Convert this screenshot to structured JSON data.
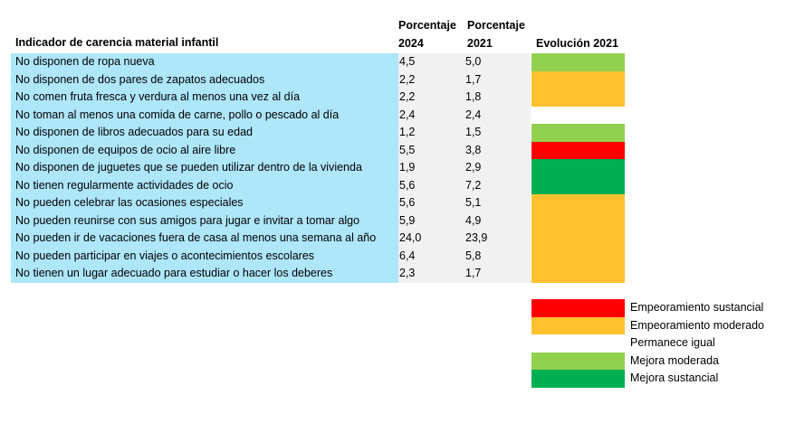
{
  "header": {
    "indicator_label": "Indicador de carencia material infantil",
    "pct_2024_line1": "Porcentaje",
    "pct_2024_line2": "2024",
    "pct_2021_line1": "Porcentaje",
    "pct_2021_line2": "2021",
    "evolution_label": "Evolución 2021"
  },
  "colors": {
    "indicator_bg": "#aee6fa",
    "value_bg": "#f1f1f1",
    "empeoramiento_sustancial": "#fe0000",
    "empeoramiento_moderado": "#fec12f",
    "permanece_igual": "#ffffff",
    "mejora_moderada": "#92d050",
    "mejora_sustancial": "#00b050"
  },
  "rows": [
    {
      "indicator": "No disponen de ropa nueva",
      "v2024": "4,5",
      "v2021": "5,0",
      "evolution": "mejora_moderada"
    },
    {
      "indicator": "No disponen de dos pares de zapatos adecuados",
      "v2024": "2,2",
      "v2021": "1,7",
      "evolution": "empeoramiento_moderado"
    },
    {
      "indicator": "No comen fruta fresca y verdura al menos una vez al día",
      "v2024": "2,2",
      "v2021": "1,8",
      "evolution": "empeoramiento_moderado"
    },
    {
      "indicator": "No toman al menos una comida de carne, pollo o pescado al día",
      "v2024": "2,4",
      "v2021": "2,4",
      "evolution": "permanece_igual"
    },
    {
      "indicator": "No disponen de libros adecuados para su edad",
      "v2024": "1,2",
      "v2021": "1,5",
      "evolution": "mejora_moderada"
    },
    {
      "indicator": "No disponen de equipos de ocio al aire libre",
      "v2024": "5,5",
      "v2021": "3,8",
      "evolution": "empeoramiento_sustancial"
    },
    {
      "indicator": "No disponen de juguetes que se pueden utilizar dentro de la vivienda",
      "v2024": "1,9",
      "v2021": "2,9",
      "evolution": "mejora_sustancial"
    },
    {
      "indicator": "No tienen regularmente actividades de ocio",
      "v2024": "5,6",
      "v2021": "7,2",
      "evolution": "mejora_sustancial"
    },
    {
      "indicator": "No pueden celebrar las ocasiones especiales",
      "v2024": "5,6",
      "v2021": "5,1",
      "evolution": "empeoramiento_moderado"
    },
    {
      "indicator": "No pueden reunirse con sus amigos para jugar e invitar a tomar algo",
      "v2024": "5,9",
      "v2021": "4,9",
      "evolution": "empeoramiento_moderado"
    },
    {
      "indicator": "No pueden ir de vacaciones fuera de casa al menos una semana al año",
      "v2024": "24,0",
      "v2021": "23,9",
      "evolution": "empeoramiento_moderado"
    },
    {
      "indicator": "No pueden participar en viajes o acontecimientos escolares",
      "v2024": "6,4",
      "v2021": "5,8",
      "evolution": "empeoramiento_moderado"
    },
    {
      "indicator": "No tienen un lugar adecuado para estudiar o hacer los deberes",
      "v2024": "2,3",
      "v2021": "1,7",
      "evolution": "empeoramiento_moderado"
    }
  ],
  "legend": [
    {
      "key": "empeoramiento_sustancial",
      "label": "Empeoramiento sustancial"
    },
    {
      "key": "empeoramiento_moderado",
      "label": "Empeoramiento moderado"
    },
    {
      "key": "permanece_igual",
      "label": "Permanece igual"
    },
    {
      "key": "mejora_moderada",
      "label": "Mejora moderada"
    },
    {
      "key": "mejora_sustancial",
      "label": "Mejora sustancial"
    }
  ]
}
